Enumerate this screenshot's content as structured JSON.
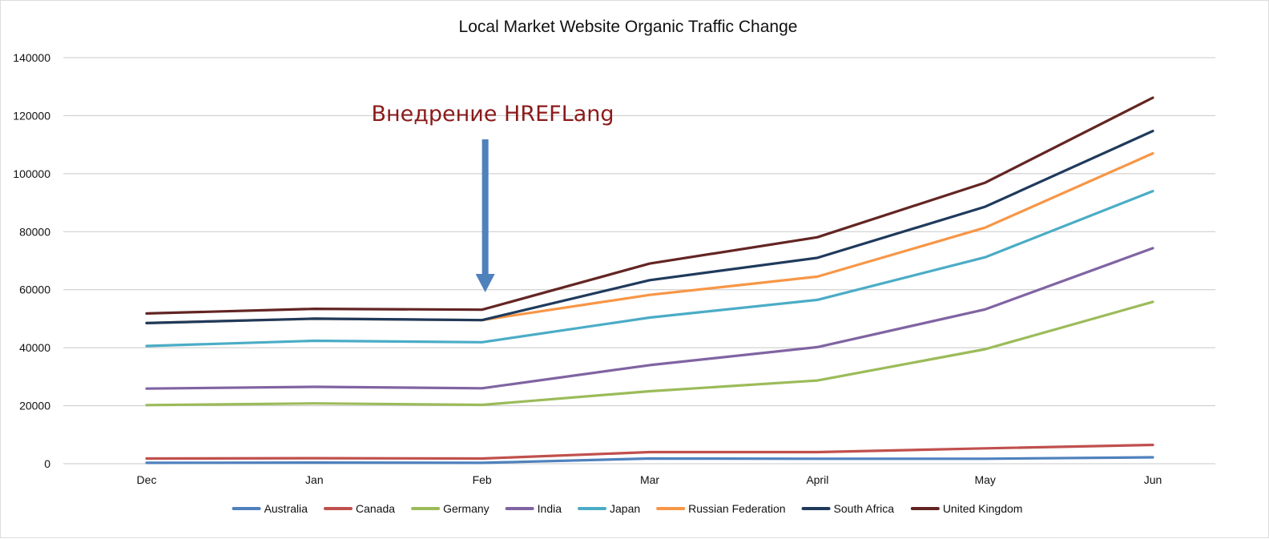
{
  "colors": {
    "background": "#ffffff",
    "gridline": "#c8c8c8",
    "annotation_text": "#8b1a1a",
    "annotation_arrow": "#4f81bd"
  },
  "chart_data": {
    "type": "line",
    "title": "Local Market Website Organic Traffic Change",
    "xlabel": "",
    "ylabel": "",
    "categories": [
      "Dec",
      "Jan",
      "Feb",
      "Mar",
      "April",
      "May",
      "Jun"
    ],
    "ylim": [
      0,
      140000
    ],
    "yticks": [
      "0",
      "20000",
      "40000",
      "60000",
      "80000",
      "100000",
      "120000",
      "140000"
    ],
    "grid": true,
    "legend_position": "bottom",
    "series": [
      {
        "name": "Australia",
        "color": "#4f81bd",
        "values": [
          300,
          400,
          300,
          1800,
          1700,
          1700,
          2200
        ]
      },
      {
        "name": "Canada",
        "color": "#c0504d",
        "values": [
          1800,
          1900,
          1800,
          4000,
          4000,
          5300,
          6500
        ]
      },
      {
        "name": "Germany",
        "color": "#9bbb59",
        "values": [
          20200,
          20800,
          20300,
          25000,
          28700,
          39500,
          55800
        ]
      },
      {
        "name": "India",
        "color": "#8064a2",
        "values": [
          25900,
          26500,
          26000,
          34000,
          40200,
          53200,
          74300
        ]
      },
      {
        "name": "Japan",
        "color": "#4bacc6",
        "values": [
          40600,
          42400,
          41900,
          50400,
          56500,
          71200,
          94000
        ]
      },
      {
        "name": "Russian Federation",
        "color": "#f79646",
        "values": [
          48500,
          50000,
          49500,
          58200,
          64500,
          81400,
          107000
        ]
      },
      {
        "name": "South Africa",
        "color": "#1f3a5c",
        "values": [
          48500,
          50000,
          49500,
          63300,
          71000,
          88600,
          114700
        ]
      },
      {
        "name": "United Kingdom",
        "color": "#632523",
        "values": [
          51800,
          53400,
          53100,
          69000,
          78100,
          96900,
          126200
        ]
      }
    ],
    "annotations": [
      {
        "text": "Внедрение HREFLang",
        "category": "Feb",
        "arrow": "down"
      }
    ]
  }
}
